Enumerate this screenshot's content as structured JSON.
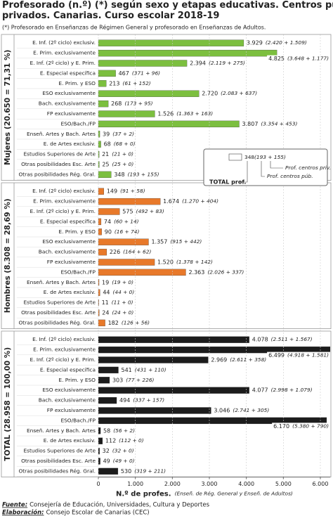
{
  "chart_data": {
    "type": "bar",
    "orientation": "horizontal",
    "title": "Profesorado (n.º) (*) según sexo y etapas educativas. Centros públicos y centros privados. Canarias. Curso escolar 2018-19",
    "subtitle": "(*) Profesorado en Enseñanzas de Régimen General y profesorado en Enseñanzas de Adultos.",
    "categories": [
      "E. Inf. (2º ciclo) exclusiv.",
      "E. Prim.  exclusivamente",
      "E. Inf. (2º ciclo) y E. Prim.",
      "E. Especial específica",
      "E. Prim. y ESO",
      "ESO exclusivamente",
      "Bach. exclusivamente",
      "FP exclusivamente",
      "ESO/Bach./FP",
      "Enseñ. Artes y Bach. Artes",
      "E. de Artes exclusiv.",
      "Estudios Superiores de Arte",
      "Otras posibilidades Esc. Arte",
      "Otras posibilidades Rég. Gral."
    ],
    "series": [
      {
        "name": "Mujeres (20.650 = 71,31 %)",
        "color": "#7cbf3f",
        "values": [
          3929,
          4825,
          2394,
          467,
          213,
          2720,
          268,
          1526,
          3807,
          39,
          68,
          21,
          25,
          348
        ],
        "value_labels": [
          "3.929",
          "4.825",
          "2.394",
          "467",
          "213",
          "2.720",
          "268",
          "1.526",
          "3.807",
          "39",
          "68",
          "21",
          "25",
          "348"
        ],
        "breakdowns": [
          "(2.420 + 1.509)",
          "(3.648 + 1.177)",
          "(2.119 + 275)",
          "(371 + 96)",
          "(61 + 152)",
          "(2.083 + 637)",
          "(173 + 95)",
          "(1.363 + 163)",
          "(3.354 + 453)",
          "(37 + 2)",
          "(68 + 0)",
          "(21 + 0)",
          "(25 + 0)",
          "(193 + 155)"
        ]
      },
      {
        "name": "Hombres (8.308 = 28,69 %)",
        "color": "#e8792a",
        "values": [
          149,
          1674,
          575,
          74,
          90,
          1357,
          226,
          1520,
          2363,
          19,
          44,
          11,
          24,
          182
        ],
        "value_labels": [
          "149",
          "1.674",
          "575",
          "74",
          "90",
          "1.357",
          "226",
          "1.520",
          "2.363",
          "19",
          "44",
          "11",
          "24",
          "182"
        ],
        "breakdowns": [
          "(91 + 58)",
          "(1.270 + 404)",
          "(492 + 83)",
          "(60 + 14)",
          "(16 + 74)",
          "(915 + 442)",
          "(164 + 62)",
          "(1.378 + 142)",
          "(2.026 + 337)",
          "(19 + 0)",
          "(44 + 0)",
          "(11 + 0)",
          "(24 + 0)",
          "(126 + 56)"
        ]
      },
      {
        "name": "TOTAL (28.958 = 100,00 %)",
        "color": "#1c1c1c",
        "values": [
          4078,
          6499,
          2969,
          541,
          303,
          4077,
          494,
          3046,
          6170,
          58,
          112,
          32,
          49,
          530
        ],
        "value_labels": [
          "4.078",
          "6.499",
          "2.969",
          "541",
          "303",
          "4.077",
          "494",
          "3.046",
          "6.170",
          "58",
          "112",
          "32",
          "49",
          "530"
        ],
        "breakdowns": [
          "(2.511 + 1.567)",
          "(4.918 + 1.581)",
          "(2.611 + 358)",
          "(431 + 110)",
          "(77 + 226)",
          "(2.998 + 1.079)",
          "(337 + 157)",
          "(2.741 + 305)",
          "(5.380 + 790)",
          "(56 + 2)",
          "(112 + 0)",
          "(32 + 0)",
          "(49 + 0)",
          "(319 + 211)"
        ]
      }
    ],
    "xlim": [
      0,
      6250
    ],
    "xticks": [
      0,
      {
        "value": 1000,
        "label": "1.000"
      },
      {
        "value": 2000,
        "label": "2.000"
      },
      {
        "value": 3000,
        "label": "3.000"
      },
      {
        "value": 4000,
        "label": "4.000"
      },
      {
        "value": 5000,
        "label": "5.000"
      },
      {
        "value": 6000,
        "label": "6.000"
      }
    ],
    "grid": true,
    "x_label": "N.º de profes.",
    "x_label_note": "(Enseñ. de Rég. General y Enseñ. de Adultos)",
    "key": {
      "value_label": "348",
      "breakdown": "(193 + 155)",
      "private": "Prof. centros priv.",
      "public": "Prof. centros púb.",
      "total": "TOTAL prof."
    },
    "source": {
      "label": "Fuente:",
      "text": "Consejería de Educación, Universidades, Cultura y Deportes"
    },
    "credit": {
      "label": "Elaboración:",
      "text": "Consejo Escolar de Canarias (CEC)"
    }
  }
}
